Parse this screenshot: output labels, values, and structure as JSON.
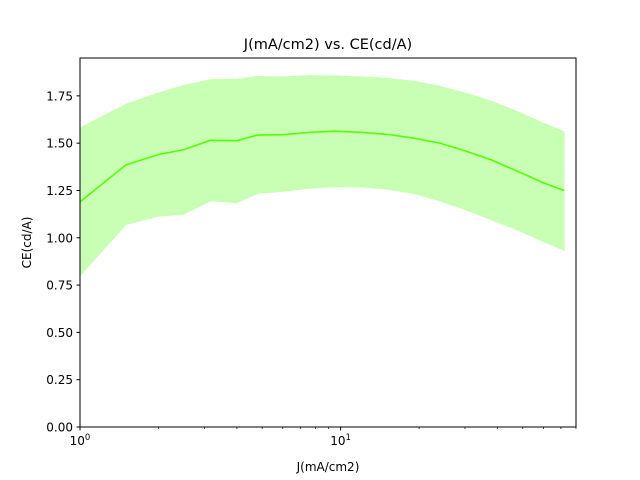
{
  "chart_data": {
    "type": "line",
    "title": "J(mA/cm2) vs. CE(cd/A)",
    "xlabel": "J(mA/cm2)",
    "ylabel": "CE(cd/A)",
    "xscale": "log",
    "xlim": [
      1,
      80
    ],
    "ylim": [
      0,
      1.95
    ],
    "grid": false,
    "x_ticks": [
      {
        "value": 1,
        "base": "10",
        "exp": "0"
      },
      {
        "value": 10,
        "base": "10",
        "exp": "1"
      }
    ],
    "y_ticks": [
      {
        "value": 0.0,
        "label": "0.00"
      },
      {
        "value": 0.25,
        "label": "0.25"
      },
      {
        "value": 0.5,
        "label": "0.50"
      },
      {
        "value": 0.75,
        "label": "0.75"
      },
      {
        "value": 1.0,
        "label": "1.00"
      },
      {
        "value": 1.25,
        "label": "1.25"
      },
      {
        "value": 1.5,
        "label": "1.50"
      },
      {
        "value": 1.75,
        "label": "1.75"
      }
    ],
    "series": [
      {
        "line_color": "#55ff00",
        "band_color": "#c8ffb4",
        "x": [
          1.0,
          1.5,
          2.0,
          2.5,
          3.16,
          4.0,
          4.8,
          6.0,
          7.6,
          9.5,
          12.0,
          15.0,
          19.0,
          24.0,
          30.0,
          38.0,
          48.0,
          60.0,
          72.0
        ],
        "y": [
          1.19,
          1.385,
          1.44,
          1.465,
          1.515,
          1.513,
          1.543,
          1.545,
          1.557,
          1.563,
          1.557,
          1.547,
          1.527,
          1.5,
          1.46,
          1.41,
          1.35,
          1.29,
          1.25
        ],
        "lower": [
          0.8,
          1.07,
          1.115,
          1.125,
          1.195,
          1.185,
          1.235,
          1.245,
          1.262,
          1.27,
          1.268,
          1.258,
          1.235,
          1.195,
          1.15,
          1.095,
          1.04,
          0.98,
          0.935
        ],
        "upper": [
          1.58,
          1.705,
          1.765,
          1.805,
          1.835,
          1.838,
          1.852,
          1.85,
          1.857,
          1.855,
          1.85,
          1.842,
          1.828,
          1.8,
          1.765,
          1.72,
          1.665,
          1.605,
          1.56
        ]
      }
    ]
  }
}
